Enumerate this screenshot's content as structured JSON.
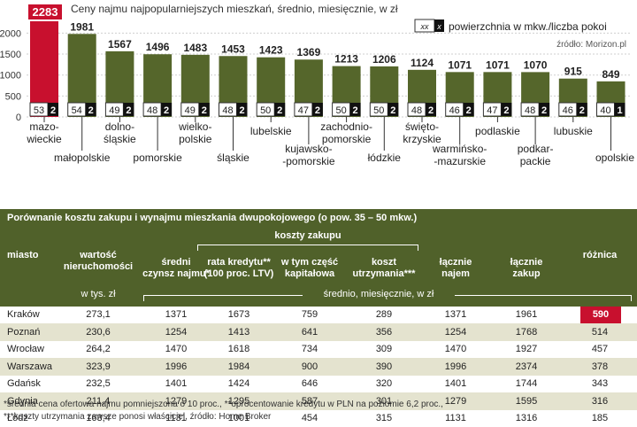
{
  "chart_data": {
    "type": "bar",
    "title": "Ceny najmu najpopularniejszych mieszkań, średnio, miesięcznie, w zł",
    "legend": {
      "badge": "xx",
      "badge_rooms": "x",
      "text": "powierzchnia w mkw./liczba pokoi"
    },
    "source": "źródło: Morizon.pl",
    "ylim": [
      0,
      2300
    ],
    "yticks": [
      0,
      500,
      1000,
      1500,
      2000
    ],
    "regions": [
      {
        "label": [
          "mazo-",
          "wieckie"
        ],
        "value": 2283,
        "area": "53",
        "rooms": "2",
        "highlight": true
      },
      {
        "label": [
          "małopolskie"
        ],
        "value": 1981,
        "area": "54",
        "rooms": "2"
      },
      {
        "label": [
          "dolno-",
          "śląskie"
        ],
        "value": 1567,
        "area": "49",
        "rooms": "2"
      },
      {
        "label": [
          "pomorskie"
        ],
        "value": 1496,
        "area": "48",
        "rooms": "2"
      },
      {
        "label": [
          "wielko-",
          "polskie"
        ],
        "value": 1483,
        "area": "49",
        "rooms": "2"
      },
      {
        "label": [
          "śląskie"
        ],
        "value": 1453,
        "area": "48",
        "rooms": "2"
      },
      {
        "label": [
          "lubelskie"
        ],
        "value": 1423,
        "area": "50",
        "rooms": "2"
      },
      {
        "label": [
          "kujawsko-",
          "-pomorskie"
        ],
        "value": 1369,
        "area": "47",
        "rooms": "2"
      },
      {
        "label": [
          "zachodnio-",
          "pomorskie"
        ],
        "value": 1213,
        "area": "50",
        "rooms": "2"
      },
      {
        "label": [
          "łódzkie"
        ],
        "value": 1206,
        "area": "50",
        "rooms": "2"
      },
      {
        "label": [
          "święto-",
          "krzyskie"
        ],
        "value": 1124,
        "area": "48",
        "rooms": "2"
      },
      {
        "label": [
          "warmińsko-",
          "-mazurskie"
        ],
        "value": 1071,
        "area": "46",
        "rooms": "2"
      },
      {
        "label": [
          "podlaskie"
        ],
        "value": 1071,
        "area": "47",
        "rooms": "2"
      },
      {
        "label": [
          "podkar-",
          "packie"
        ],
        "value": 1070,
        "area": "48",
        "rooms": "2"
      },
      {
        "label": [
          "lubuskie"
        ],
        "value": 915,
        "area": "46",
        "rooms": "2"
      },
      {
        "label": [
          "opolskie"
        ],
        "value": 849,
        "area": "40",
        "rooms": "1"
      }
    ]
  },
  "table": {
    "title": "Porównanie kosztu zakupu i wynajmu mieszkania dwupokojowego (o pow. 35 – 50 mkw.)",
    "headers": {
      "miasto": "miasto",
      "wartosc": [
        "wartość",
        "nieruchomości"
      ],
      "wartosc_unit": "w tys. zł",
      "koszty_zakupu": "koszty zakupu",
      "sredni": [
        "średni",
        "czynsz najmu*"
      ],
      "rata": [
        "rata kredytu**",
        "(100 proc. LTV)"
      ],
      "czesc": [
        "w tym część",
        "kapitałowa"
      ],
      "koszt": [
        "koszt",
        "utrzymania***"
      ],
      "lacznie_najem": [
        "łącznie",
        "najem"
      ],
      "lacznie_zakup": [
        "łącznie",
        "zakup"
      ],
      "roznica": "różnica",
      "span_note": "średnio, miesięcznie, w zł"
    },
    "rows": [
      {
        "city": "Kraków",
        "value": "273,1",
        "rent": "1371",
        "installment": "1673",
        "capital": "759",
        "upkeep": "289",
        "total_rent": "1371",
        "total_buy": "1961",
        "diff": "590",
        "highlight": true
      },
      {
        "city": "Poznań",
        "value": "230,6",
        "rent": "1254",
        "installment": "1413",
        "capital": "641",
        "upkeep": "356",
        "total_rent": "1254",
        "total_buy": "1768",
        "diff": "514"
      },
      {
        "city": "Wrocław",
        "value": "264,2",
        "rent": "1470",
        "installment": "1618",
        "capital": "734",
        "upkeep": "309",
        "total_rent": "1470",
        "total_buy": "1927",
        "diff": "457"
      },
      {
        "city": "Warszawa",
        "value": "323,9",
        "rent": "1996",
        "installment": "1984",
        "capital": "900",
        "upkeep": "390",
        "total_rent": "1996",
        "total_buy": "2374",
        "diff": "378"
      },
      {
        "city": "Gdańsk",
        "value": "232,5",
        "rent": "1401",
        "installment": "1424",
        "capital": "646",
        "upkeep": "320",
        "total_rent": "1401",
        "total_buy": "1744",
        "diff": "343"
      },
      {
        "city": "Gdynia",
        "value": "211,4",
        "rent": "1279",
        "installment": "1295",
        "capital": "587",
        "upkeep": "301",
        "total_rent": "1279",
        "total_buy": "1595",
        "diff": "316"
      },
      {
        "city": "Łódź",
        "value": "163,4",
        "rent": "1131",
        "installment": "1001",
        "capital": "454",
        "upkeep": "315",
        "total_rent": "1131",
        "total_buy": "1316",
        "diff": "185"
      }
    ]
  },
  "footnotes": [
    "*średnia cena ofertowa najmu pomniejszona o 10 proc., **oprocentowanie kredytu w PLN na poziomie 6,2 proc.,",
    "***koszty utrzymania zawsze ponosi właściciel, źródło: Home Broker"
  ],
  "colors": {
    "bar": "#55662b",
    "bar_highlight": "#c8102e",
    "header_bg": "#50612a",
    "row_alt": "#e4e3cf"
  }
}
